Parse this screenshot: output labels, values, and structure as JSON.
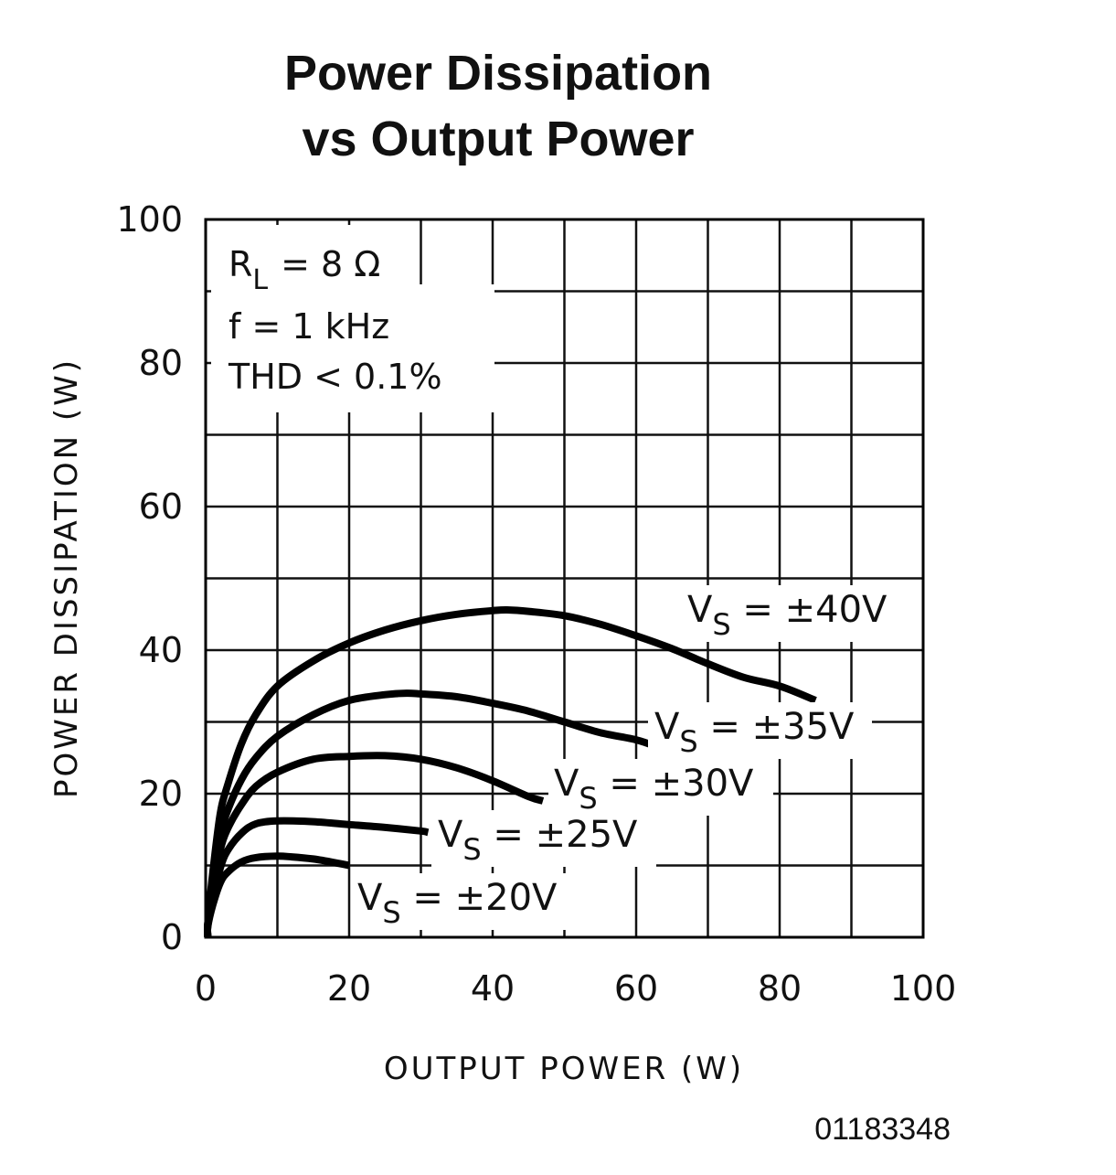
{
  "chart_data": {
    "type": "line",
    "title_lines": [
      "Power Dissipation",
      "vs Output Power"
    ],
    "xlabel": "OUTPUT POWER (W)",
    "ylabel": "POWER DISSIPATION (W)",
    "xlim": [
      0,
      100
    ],
    "ylim": [
      0,
      100
    ],
    "x_ticks": [
      0,
      20,
      40,
      60,
      80,
      100
    ],
    "x_tick_labels": [
      "0",
      "20",
      "40",
      "60",
      "80",
      "100"
    ],
    "y_ticks": [
      0,
      20,
      40,
      60,
      80,
      100
    ],
    "y_tick_labels": [
      "0",
      "20",
      "40",
      "60",
      "80",
      "100"
    ],
    "grid_step": 10,
    "grid": true,
    "conditions": {
      "load_symbol": "R",
      "load_subscript": "L",
      "load_value": "=  8 Ω",
      "frequency": "f  =  1 kHz",
      "thd": "THD < 0.1%"
    },
    "series": [
      {
        "name": "±40V",
        "label_main": "V",
        "label_sub": "S",
        "label_value": " =  ±40V",
        "x": [
          0.3,
          1,
          2,
          3,
          5,
          7,
          10,
          15,
          20,
          25,
          30,
          35,
          40,
          42,
          45,
          50,
          55,
          60,
          65,
          70,
          75,
          80,
          85
        ],
        "y": [
          2,
          9,
          17,
          21,
          27,
          31,
          35,
          38.5,
          41,
          42.8,
          44.1,
          45,
          45.5,
          45.6,
          45.4,
          44.8,
          43.6,
          42,
          40.2,
          38.1,
          36.2,
          35,
          33
        ]
      },
      {
        "name": "±35V",
        "label_main": "V",
        "label_sub": "S",
        "label_value": " =  ±35V",
        "x": [
          0.3,
          1,
          2,
          3,
          5,
          7,
          10,
          15,
          20,
          25,
          28,
          30,
          35,
          40,
          45,
          50,
          55,
          60,
          63
        ],
        "y": [
          2,
          8,
          14,
          17.5,
          22,
          25,
          28,
          31,
          33,
          33.8,
          34,
          33.9,
          33.5,
          32.6,
          31.5,
          30,
          28.5,
          27.5,
          26.5
        ]
      },
      {
        "name": "±30V",
        "label_main": "V",
        "label_sub": "S",
        "label_value": " =  ±30V",
        "x": [
          0.3,
          1,
          2,
          3,
          5,
          7,
          10,
          15,
          20,
          25,
          30,
          35,
          40,
          45,
          47
        ],
        "y": [
          2,
          7,
          12,
          15,
          18.5,
          21,
          23,
          24.8,
          25.2,
          25.3,
          24.8,
          23.6,
          21.8,
          19.6,
          19
        ]
      },
      {
        "name": "±25V",
        "label_main": "V",
        "label_sub": "S",
        "label_value": " =  ±25V",
        "x": [
          0.3,
          1,
          2,
          3,
          5,
          7,
          10,
          15,
          20,
          25,
          30,
          31
        ],
        "y": [
          1.8,
          5.5,
          9.5,
          12,
          14.5,
          15.8,
          16.2,
          16.1,
          15.7,
          15.3,
          14.8,
          14.6
        ]
      },
      {
        "name": "±20V",
        "label_main": "V",
        "label_sub": "S",
        "label_value": " =  ±20V",
        "x": [
          0.3,
          1,
          2,
          3,
          5,
          7,
          10,
          12,
          15,
          18,
          20
        ],
        "y": [
          1.5,
          4.5,
          7.5,
          9,
          10.5,
          11.1,
          11.3,
          11.2,
          10.9,
          10.4,
          10
        ]
      }
    ],
    "legend": "inline"
  },
  "figure_id": "01183348"
}
